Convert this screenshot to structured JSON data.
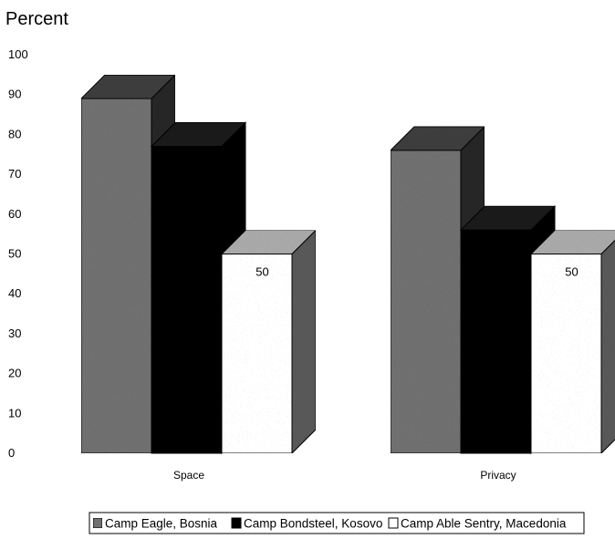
{
  "chart_data": {
    "type": "bar",
    "title": "Percent",
    "categories": [
      "Space",
      "Privacy"
    ],
    "series": [
      {
        "name": "Camp Eagle, Bosnia",
        "values": [
          89,
          76
        ],
        "color": "#6f6f6f"
      },
      {
        "name": "Camp Bondsteel, Kosovo",
        "values": [
          77,
          56
        ],
        "color": "#000000"
      },
      {
        "name": "Camp Able Sentry, Macedonia",
        "values": [
          50,
          50
        ],
        "color": "#ffffff"
      }
    ],
    "data_labels": [
      {
        "category": "Space",
        "series": "Camp Able Sentry, Macedonia",
        "text": "50"
      },
      {
        "category": "Privacy",
        "series": "Camp Able Sentry, Macedonia",
        "text": "50"
      }
    ],
    "yticks": [
      "0",
      "10",
      "20",
      "30",
      "40",
      "50",
      "60",
      "70",
      "80",
      "90",
      "100"
    ],
    "ylim": [
      0,
      100
    ],
    "xlabel": "",
    "ylabel": "",
    "grid": false,
    "legend_position": "bottom",
    "style": "3d"
  }
}
